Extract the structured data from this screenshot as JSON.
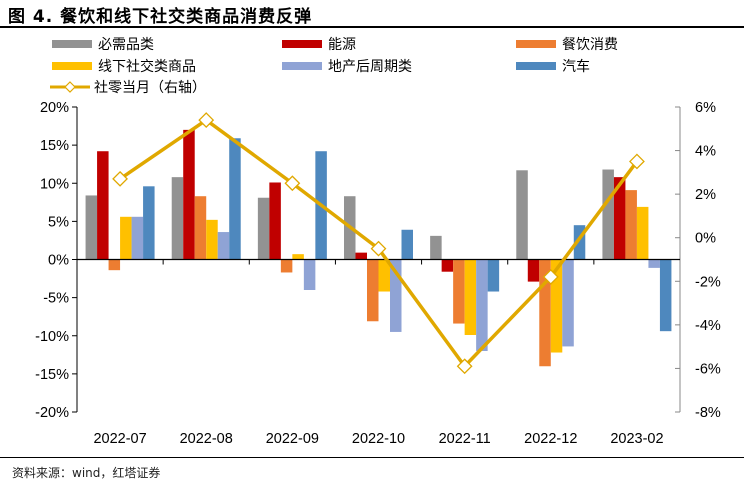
{
  "header": {
    "title": "图 4. 餐饮和线下社交类商品消费反弹"
  },
  "footer": {
    "source": "资料来源：wind，红塔证券"
  },
  "chart_data": {
    "type": "bar",
    "title": "图 4. 餐饮和线下社交类商品消费反弹",
    "categories": [
      "2022-07",
      "2022-08",
      "2022-09",
      "2022-10",
      "2022-11",
      "2022-12",
      "2023-02"
    ],
    "series": [
      {
        "name": "必需品类",
        "color": "#929292",
        "axis": "left",
        "type": "bar",
        "values": [
          8.4,
          10.8,
          8.1,
          8.3,
          3.1,
          11.7,
          11.8
        ]
      },
      {
        "name": "能源",
        "color": "#C00000",
        "axis": "left",
        "type": "bar",
        "values": [
          14.2,
          17.0,
          10.1,
          0.9,
          -1.6,
          -2.9,
          10.8
        ]
      },
      {
        "name": "餐饮消费",
        "color": "#ED7D31",
        "axis": "left",
        "type": "bar",
        "values": [
          -1.4,
          8.3,
          -1.7,
          -8.1,
          -8.4,
          -14.0,
          9.1
        ]
      },
      {
        "name": "线下社交类商品",
        "color": "#FFC000",
        "axis": "left",
        "type": "bar",
        "values": [
          5.6,
          5.2,
          0.7,
          -4.2,
          -9.9,
          -12.2,
          6.9
        ]
      },
      {
        "name": "地产后周期类",
        "color": "#8FA3D5",
        "axis": "left",
        "type": "bar",
        "values": [
          5.6,
          3.6,
          -4.0,
          -9.5,
          -12.0,
          -11.4,
          -1.1
        ]
      },
      {
        "name": "汽车",
        "color": "#4E88BE",
        "axis": "left",
        "type": "bar",
        "values": [
          9.6,
          15.9,
          14.2,
          3.9,
          -4.2,
          4.5,
          -9.4
        ]
      },
      {
        "name": "社零当月（右轴）",
        "color": "#E0A800",
        "axis": "right",
        "type": "line",
        "marker": "diamond",
        "values": [
          2.7,
          5.4,
          2.5,
          -0.5,
          -5.9,
          -1.8,
          3.5
        ]
      }
    ],
    "y_left": {
      "min": -20,
      "max": 20,
      "step": 5,
      "ticks": [
        "20%",
        "15%",
        "10%",
        "5%",
        "0%",
        "-5%",
        "-10%",
        "-15%",
        "-20%"
      ]
    },
    "y_right": {
      "min": -8,
      "max": 6,
      "step": 2,
      "ticks": [
        "6%",
        "4%",
        "2%",
        "0%",
        "-2%",
        "-4%",
        "-6%",
        "-8%"
      ]
    },
    "xlabel": "",
    "ylabel": "",
    "grid": false,
    "legend_position": "top"
  }
}
